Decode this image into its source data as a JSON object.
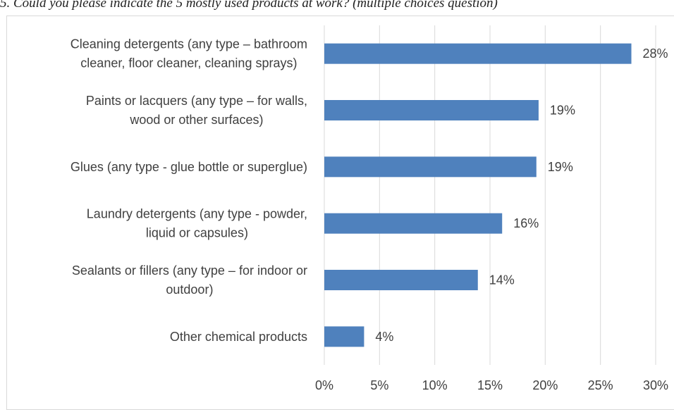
{
  "caption": "5. Could you please indicate the 5 mostly used products at work? (multiple choices question)",
  "chart_data": {
    "type": "bar",
    "orientation": "horizontal",
    "title": "",
    "xlabel": "",
    "ylabel": "",
    "xlim": [
      0,
      30
    ],
    "xticks": [
      "0%",
      "5%",
      "10%",
      "15%",
      "20%",
      "25%",
      "30%"
    ],
    "grid": true,
    "bar_color": "#4f81bd",
    "categories": [
      [
        "Cleaning detergents (any type – bathroom",
        "cleaner, floor cleaner, cleaning sprays)"
      ],
      [
        "Paints or lacquers (any type – for walls,",
        "wood or other surfaces)"
      ],
      [
        "Glues (any type - glue bottle or superglue)"
      ],
      [
        "Laundry detergents (any type - powder,",
        "liquid or capsules)"
      ],
      [
        "Sealants or fillers (any type – for indoor or",
        "outdoor)"
      ],
      [
        "Other chemical products"
      ]
    ],
    "values": [
      27.8,
      19.4,
      19.2,
      16.1,
      13.9,
      3.6
    ],
    "data_labels": [
      "28%",
      "19%",
      "19%",
      "16%",
      "14%",
      "4%"
    ]
  }
}
